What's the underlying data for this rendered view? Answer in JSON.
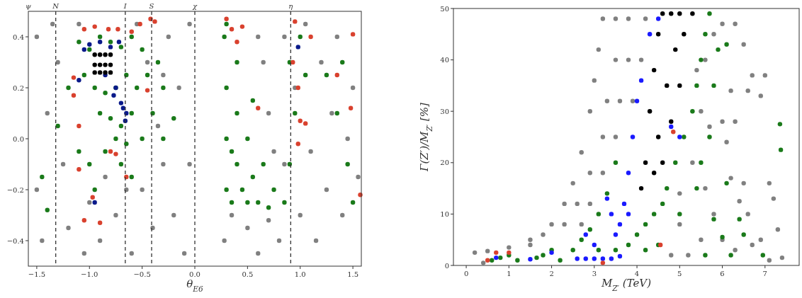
{
  "chart_data": [
    {
      "type": "scatter",
      "xlabel": "θ$_{E6}$",
      "xlim": [
        -1.58,
        1.58
      ],
      "ylim": [
        -0.5,
        0.5
      ],
      "annotations": [
        "ψ"
      ],
      "xticks": [
        {
          "value": -1.5,
          "label": "−1.5"
        },
        {
          "value": -1.0,
          "label": "−1.0"
        },
        {
          "value": -0.5,
          "label": "−0.5"
        },
        {
          "value": 0,
          "label": "0.0"
        },
        {
          "value": 0.5,
          "label": "0.5"
        },
        {
          "value": 1.0,
          "label": "1.0"
        },
        {
          "value": 1.5,
          "label": "1.5"
        }
      ],
      "yticks": [
        {
          "value": -0.4,
          "label": "−0.4"
        },
        {
          "value": -0.2,
          "label": "−0.2"
        },
        {
          "value": 0,
          "label": "0.0"
        },
        {
          "value": 0.2,
          "label": "0.2"
        },
        {
          "value": 0.4,
          "label": "0.4"
        }
      ],
      "ref_lines": [
        {
          "axis": "x",
          "value": -1.32,
          "label": "N",
          "line_style": "dashed",
          "color": "#333333"
        },
        {
          "axis": "x",
          "value": -0.66,
          "label": "I",
          "line_style": "dashed",
          "color": "#333333"
        },
        {
          "axis": "x",
          "value": -0.41,
          "label": "S",
          "line_style": "dashed",
          "color": "#333333"
        },
        {
          "axis": "x",
          "value": 0,
          "label": "χ",
          "line_style": "dashed",
          "color": "#333333"
        },
        {
          "axis": "x",
          "value": 0.91,
          "label": "η",
          "line_style": "dashed",
          "color": "#333333"
        }
      ],
      "marker": "circle",
      "grid": false,
      "series": [
        {
          "color": "#808080",
          "x": [
            -1.5,
            -1.4,
            -1.5,
            -1.45,
            -1.3,
            -1.25,
            -1.2,
            -1.1,
            -1.05,
            -0.9,
            -0.75,
            -0.6,
            -0.55,
            -0.5,
            -0.45,
            -0.4,
            -0.35,
            -0.3,
            -0.25,
            -0.2,
            -0.15,
            -0.1,
            -0.05,
            -0.05,
            0.28,
            0.35,
            0.5,
            0.6,
            0.7,
            0.8,
            0.85,
            0.85,
            0.95,
            1.0,
            1.05,
            1.1,
            1.15,
            1.2,
            1.25,
            1.3,
            1.35,
            1.4,
            1.45,
            1.5,
            1.55,
            0.6,
            0.7,
            0.65,
            0.75,
            -1.35,
            -0.85,
            -1.0,
            -0.65,
            -0.3
          ],
          "values": [
            0.4,
            0.1,
            -0.2,
            -0.4,
            0.3,
            -0.1,
            -0.35,
            0.45,
            -0.45,
            -0.4,
            -0.3,
            -0.45,
            0.45,
            -0.2,
            0.3,
            -0.35,
            0.05,
            -0.1,
            0.4,
            -0.3,
            0.2,
            -0.45,
            0.45,
            -0.1,
            -0.4,
            -0.3,
            -0.35,
            -0.45,
            -0.32,
            -0.4,
            0.4,
            -0.1,
            0.2,
            -0.3,
            0.45,
            -0.05,
            -0.4,
            0.3,
            -0.2,
            0.1,
            0.4,
            -0.3,
            0.0,
            0.2,
            -0.15,
            0.4,
            0.1,
            0.3,
            -0.05,
            0.45,
            -0.15,
            -0.25,
            -0.2,
            0.25
          ]
        },
        {
          "color": "#1a7a1a",
          "x": [
            -1.1,
            -1.0,
            -0.9,
            -0.8,
            -0.7,
            -0.6,
            -0.5,
            -0.45,
            -0.35,
            -0.3,
            -1.05,
            -0.95,
            -0.85,
            -0.75,
            -0.65,
            -0.55,
            -0.9,
            -0.8,
            -0.7,
            -0.6,
            -0.75,
            -0.65,
            -0.5,
            -0.85,
            -0.7,
            -0.6,
            -1.0,
            -0.95,
            -1.1,
            -1.3,
            -1.45,
            -1.4,
            -1.2,
            -0.4,
            -0.3,
            -0.2,
            0.28,
            0.3,
            0.3,
            0.3,
            0.35,
            0.4,
            0.4,
            0.45,
            0.5,
            0.5,
            0.55,
            0.6,
            0.65,
            0.7,
            0.75,
            0.4,
            0.55,
            0.85,
            0.9,
            0.95,
            0.9,
            1.0,
            1.05,
            1.25,
            1.35,
            1.45,
            1.4,
            1.5,
            0.3,
            0.35
          ],
          "values": [
            0.38,
            0.35,
            0.4,
            0.38,
            0.36,
            0.4,
            0.35,
            0.25,
            0.3,
            0.2,
            0.25,
            0.2,
            0.18,
            0.2,
            0.25,
            0.2,
            0.1,
            0.08,
            0.05,
            0.1,
            0.0,
            -0.02,
            0.0,
            -0.05,
            -0.1,
            -0.15,
            -0.1,
            -0.2,
            -0.05,
            0.05,
            -0.15,
            -0.28,
            0.2,
            0.1,
            0.0,
            0.08,
            0.4,
            0.2,
            0.0,
            -0.2,
            -0.25,
            0.1,
            -0.1,
            -0.2,
            0.0,
            -0.25,
            -0.15,
            -0.25,
            -0.1,
            -0.27,
            -0.2,
            0.3,
            0.15,
            -0.25,
            0.3,
            0.1,
            -0.1,
            0.4,
            0.25,
            0.25,
            0.1,
            -0.1,
            0.3,
            -0.25,
            0.45,
            -0.05
          ]
        },
        {
          "color": "#0a1a8a",
          "x": [
            -1.05,
            -1.0,
            -0.9,
            -0.8,
            -0.72,
            -0.85,
            -0.75,
            -0.77,
            -0.7,
            -0.68,
            -0.65,
            -0.66,
            -1.1,
            -0.95,
            0.98
          ],
          "values": [
            0.35,
            0.37,
            0.38,
            0.36,
            0.38,
            0.25,
            0.2,
            0.17,
            0.14,
            0.12,
            0.1,
            0.07,
            0.23,
            -0.25,
            0.36
          ]
        },
        {
          "color": "#000000",
          "x": [
            -0.95,
            -0.9,
            -0.85,
            -0.8,
            -0.95,
            -0.9,
            -0.85,
            -0.8,
            -0.95,
            -0.9,
            -0.85,
            -0.8
          ],
          "values": [
            0.33,
            0.33,
            0.33,
            0.33,
            0.29,
            0.29,
            0.29,
            0.29,
            0.26,
            0.26,
            0.26,
            0.26
          ]
        },
        {
          "color": "#d9412e",
          "x": [
            -1.05,
            -0.95,
            -0.82,
            -0.73,
            -0.6,
            -0.52,
            -0.42,
            -0.38,
            -1.15,
            -1.15,
            -1.1,
            -1.1,
            -0.97,
            -1.05,
            -0.9,
            -0.8,
            -0.75,
            -0.65,
            -0.45,
            0.3,
            0.35,
            0.4,
            0.45,
            0.6,
            0.93,
            0.95,
            0.98,
            1.0,
            1.05,
            0.98,
            1.1,
            1.35,
            1.48,
            1.5,
            1.57
          ],
          "values": [
            0.43,
            0.44,
            0.43,
            0.43,
            0.42,
            0.45,
            0.47,
            0.46,
            0.24,
            0.17,
            0.05,
            -0.12,
            -0.23,
            -0.32,
            -0.33,
            -0.05,
            -0.06,
            -0.15,
            0.19,
            0.47,
            0.43,
            0.38,
            0.44,
            0.12,
            0.3,
            0.46,
            0.2,
            0.07,
            0.06,
            -0.02,
            0.4,
            0.25,
            0.12,
            0.41,
            -0.22
          ]
        }
      ]
    },
    {
      "type": "scatter",
      "xlabel": "M$_{Z′}$ (TeV)",
      "ylabel": "Γ(Z′)/M$_{Z′}$ [%]",
      "xlim": [
        -0.3,
        7.8
      ],
      "ylim": [
        0,
        50
      ],
      "xticks": [
        0,
        1,
        2,
        3,
        4,
        5,
        6,
        7
      ],
      "yticks": [
        0,
        10,
        20,
        30,
        40,
        50
      ],
      "marker": "circle",
      "grid": false,
      "series": [
        {
          "color": "#808080",
          "x": [
            0.2,
            0.5,
            1,
            1.5,
            2,
            2.3,
            2.5,
            2.7,
            2.9,
            3.0,
            3.1,
            3.2,
            3.5,
            3.8,
            4.2,
            3.5,
            3.8,
            4.1,
            3.3,
            3.6,
            3.9,
            3.2,
            3.5,
            2.9,
            3.2,
            2.6,
            2.9,
            2.3,
            2.7,
            1.8,
            1.5,
            0.4,
            5.8,
            6.0,
            6.3,
            6.5,
            6.7,
            7.0,
            6.2,
            6.6,
            6.9,
            6.0,
            6.3,
            6.1,
            6.2,
            6.5,
            7.1,
            7.2,
            6.4,
            6.6,
            7.3,
            6.9,
            6.7,
            7.4,
            7.1,
            6.0,
            6.3,
            5.5,
            5.7,
            5.3,
            5.6,
            5.8,
            5.5,
            5.2,
            4.8,
            5.0,
            5.0,
            5.4,
            5.6
          ],
          "values": [
            2.5,
            2.8,
            3.5,
            5,
            8,
            12,
            16,
            22,
            30,
            36,
            42,
            48,
            48,
            48,
            48,
            40,
            40,
            40,
            32,
            32,
            32,
            25,
            25,
            18,
            18,
            12,
            12,
            8,
            8,
            6,
            4,
            0.5,
            45,
            47,
            47,
            43,
            37,
            37,
            34,
            34,
            33,
            28,
            28,
            24,
            17,
            16,
            16,
            13,
            12.5,
            10,
            7,
            5,
            4,
            1.5,
            1,
            5,
            3,
            30,
            27,
            20,
            15,
            10,
            5,
            2,
            2,
            8,
            14,
            38,
            40
          ]
        },
        {
          "color": "#1a7a1a",
          "x": [
            0.6,
            0.8,
            1,
            1.2,
            1.65,
            1.8,
            2,
            2.2,
            2.5,
            2.7,
            2.9,
            3.1,
            3.3,
            3.5,
            3.1,
            3.5,
            3.8,
            4.0,
            4.2,
            4.4,
            4.2,
            4.5,
            4.7,
            4.9,
            5.1,
            5.3,
            5.4,
            5.5,
            5.6,
            5.7,
            5.0,
            5.4,
            5.5,
            5.7,
            5.8,
            5.9,
            6.1,
            5.8,
            6.0,
            6.2,
            6.4,
            6.5,
            7.35,
            7.37,
            6.1,
            6.95,
            5.6,
            4.6
          ],
          "values": [
            1,
            1.5,
            2,
            1,
            1.5,
            2,
            3,
            1,
            3,
            5,
            7,
            10,
            14,
            20,
            3,
            3,
            4,
            6,
            8,
            10,
            3,
            4,
            15,
            20,
            25,
            30,
            35,
            40,
            45,
            49,
            10,
            15,
            20,
            25,
            35,
            42,
            43,
            9,
            5.5,
            2,
            9,
            6,
            27.5,
            22.5,
            16,
            2,
            2,
            12
          ]
        },
        {
          "color": "#1a1aff",
          "x": [
            3.6,
            3.7,
            3.8,
            3.9,
            4.0,
            4.1,
            3.8,
            3.5,
            2.6,
            2.8,
            3.0,
            3.2,
            3.4,
            3.6,
            2.0,
            1.5,
            0.7,
            3.3,
            3.4,
            2.8,
            3.0,
            4.3,
            4.5,
            5.0,
            4.8
          ],
          "values": [
            8,
            12,
            18,
            25,
            32,
            36,
            10,
            6,
            1.3,
            1.3,
            1.3,
            1.3,
            1.3,
            1.8,
            2.5,
            1.2,
            1.5,
            13,
            10,
            6,
            4,
            45,
            48,
            25,
            27
          ]
        },
        {
          "color": "#000000",
          "x": [
            4.1,
            4.2,
            4.3,
            4.4,
            4.5,
            4.6,
            4.8,
            5.0,
            5.3,
            4.5,
            4.7,
            4.9,
            5.1,
            4.6,
            4.8,
            5.0,
            4.4
          ],
          "values": [
            15,
            20,
            30,
            38,
            45,
            49,
            49,
            49,
            49,
            25,
            35,
            42,
            45,
            20,
            28,
            35,
            18
          ]
        },
        {
          "color": "#d9412e",
          "x": [
            0.5,
            0.7,
            1.0,
            3.2,
            4.55,
            4.85
          ],
          "values": [
            1,
            2.5,
            2.5,
            0.5,
            4,
            26
          ]
        }
      ]
    }
  ]
}
